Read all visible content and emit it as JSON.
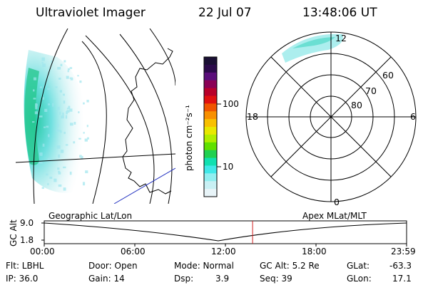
{
  "header": {
    "instrument": "Ultraviolet Imager",
    "date": "22 Jul 07",
    "time": "13:48:06 UT"
  },
  "colorbar": {
    "label": "photon cm⁻²s⁻¹",
    "ticks": [
      "100",
      "10"
    ],
    "colors": [
      "#1a0f33",
      "#2b0a4a",
      "#5a0e7a",
      "#8a0055",
      "#b8002a",
      "#e01010",
      "#f05500",
      "#f89000",
      "#f8c000",
      "#e8e800",
      "#b0ee00",
      "#60e000",
      "#20d050",
      "#10e0b0",
      "#40e8e8",
      "#90eef0",
      "#c8f0f4",
      "#e8f4f8"
    ]
  },
  "polar": {
    "labels_lat": [
      "60",
      "70",
      "80"
    ],
    "labels_mlt": [
      "12",
      "18",
      "6",
      "0"
    ]
  },
  "timeline": {
    "left_label": "Geographic Lat/Lon",
    "right_label": "Apex MLat/MLT",
    "y_axis_title": "GC Alt",
    "y_ticks": [
      "9.0",
      "1.8"
    ],
    "x_ticks": [
      "00:00",
      "06:00",
      "12:00",
      "18:00",
      "23:59"
    ],
    "current_time_fraction": 0.575,
    "marker_color": "#d02020"
  },
  "status": {
    "flt": "Flt: LBHL",
    "door": "Door: Open",
    "mode": "Mode: Normal",
    "gc_alt": "GC Alt: 5.2 Re",
    "glat_label": "GLat:",
    "glat_value": "-63.3",
    "ip": "IP: 36.0",
    "gain": "Gain: 14",
    "dsp_label": "Dsp:",
    "dsp_value": "3.9",
    "seq": "Seq: 39",
    "glon_label": "GLon:",
    "glon_value": "17.1"
  }
}
